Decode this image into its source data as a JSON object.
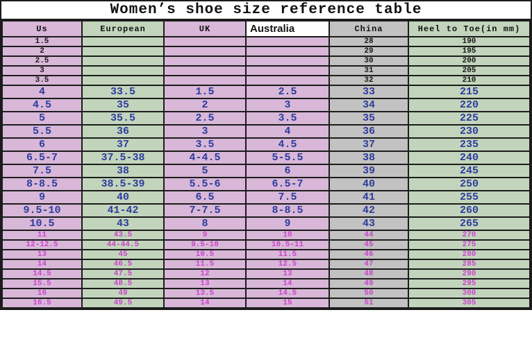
{
  "title": "Women’s shoe size reference table",
  "colors": {
    "pink_column": "#d8b7d8",
    "green_column": "#c2d5bc",
    "gray_column": "#c2c2c2",
    "blue_text": "#2e3c9c",
    "magenta_text": "#cc44cc",
    "black_text": "#1a1a1a",
    "grid_border": "#1c1c1c",
    "australia_header_bg": "#ffffff"
  },
  "table": {
    "columns": [
      {
        "key": "us",
        "label": "Us"
      },
      {
        "key": "european",
        "label": "European"
      },
      {
        "key": "uk",
        "label": "UK"
      },
      {
        "key": "australia",
        "label": "Australia"
      },
      {
        "key": "china",
        "label": "China"
      },
      {
        "key": "heel_to_toe",
        "label": "Heel to Toe(in mm)"
      }
    ],
    "rows": [
      {
        "style": "black",
        "cells": [
          "1.5",
          "",
          "",
          "",
          "28",
          "190"
        ]
      },
      {
        "style": "black",
        "cells": [
          "2",
          "",
          "",
          "",
          "29",
          "195"
        ]
      },
      {
        "style": "black",
        "cells": [
          "2.5",
          "",
          "",
          "",
          "30",
          "200"
        ]
      },
      {
        "style": "black",
        "cells": [
          "3",
          "",
          "",
          "",
          "31",
          "205"
        ]
      },
      {
        "style": "black",
        "cells": [
          "3.5",
          "",
          "",
          "",
          "32",
          "210"
        ]
      },
      {
        "style": "blue",
        "cells": [
          "4",
          "33.5",
          "1.5",
          "2.5",
          "33",
          "215"
        ]
      },
      {
        "style": "blue",
        "cells": [
          "4.5",
          "35",
          "2",
          "3",
          "34",
          "220"
        ]
      },
      {
        "style": "blue",
        "cells": [
          "5",
          "35.5",
          "2.5",
          "3.5",
          "35",
          "225"
        ]
      },
      {
        "style": "blue",
        "cells": [
          "5.5",
          "36",
          "3",
          "4",
          "36",
          "230"
        ]
      },
      {
        "style": "blue",
        "cells": [
          "6",
          "37",
          "3.5",
          "4.5",
          "37",
          "235"
        ]
      },
      {
        "style": "blue",
        "cells": [
          "6.5-7",
          "37.5-38",
          "4-4.5",
          "5-5.5",
          "38",
          "240"
        ]
      },
      {
        "style": "blue",
        "cells": [
          "7.5",
          "38",
          "5",
          "6",
          "39",
          "245"
        ]
      },
      {
        "style": "blue",
        "cells": [
          "8-8.5",
          "38.5-39",
          "5.5-6",
          "6.5-7",
          "40",
          "250"
        ]
      },
      {
        "style": "blue",
        "cells": [
          "9",
          "40",
          "6.5",
          "7.5",
          "41",
          "255"
        ]
      },
      {
        "style": "blue",
        "cells": [
          "9.5-10",
          "41-42",
          "7-7.5",
          "8-8.5",
          "42",
          "260"
        ]
      },
      {
        "style": "blue",
        "cells": [
          "10.5",
          "43",
          "8",
          "9",
          "43",
          "265"
        ]
      },
      {
        "style": "pink",
        "cells": [
          "11",
          "43.5",
          "9",
          "10",
          "44",
          "270"
        ]
      },
      {
        "style": "pink",
        "cells": [
          "12-12.5",
          "44-44.5",
          "9.5-10",
          "10.5-11",
          "45",
          "275"
        ]
      },
      {
        "style": "pink",
        "cells": [
          "13",
          "45",
          "10.5",
          "11.5",
          "46",
          "280"
        ]
      },
      {
        "style": "pink",
        "cells": [
          "14",
          "46.5",
          "11.5",
          "12.5",
          "47",
          "285"
        ]
      },
      {
        "style": "pink",
        "cells": [
          "14.5",
          "47.5",
          "12",
          "13",
          "48",
          "290"
        ]
      },
      {
        "style": "pink",
        "cells": [
          "15.5",
          "48.5",
          "13",
          "14",
          "49",
          "295"
        ]
      },
      {
        "style": "pink",
        "cells": [
          "16",
          "49",
          "13.5",
          "14.5",
          "50",
          "300"
        ]
      },
      {
        "style": "pink",
        "cells": [
          "16.5",
          "49.5",
          "14",
          "15",
          "51",
          "305"
        ]
      }
    ]
  }
}
